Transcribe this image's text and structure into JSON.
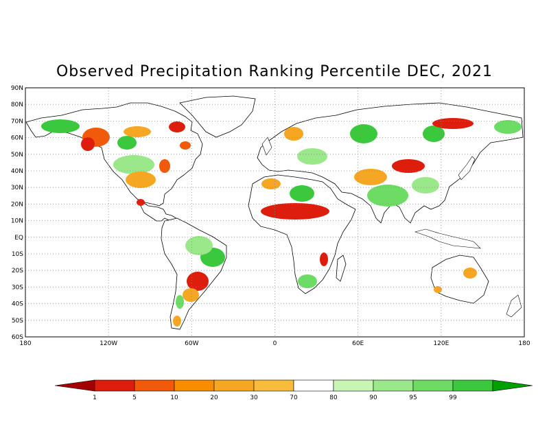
{
  "map": {
    "title": "Observed Precipitation Ranking Percentile DEC, 2021",
    "lat_labels": [
      "90N",
      "80N",
      "70N",
      "60N",
      "50N",
      "40N",
      "30N",
      "20N",
      "10N",
      "EQ",
      "10S",
      "20S",
      "30S",
      "40S",
      "50S",
      "60S"
    ],
    "lat_values": [
      90,
      80,
      70,
      60,
      50,
      40,
      30,
      20,
      10,
      0,
      -10,
      -20,
      -30,
      -40,
      -50,
      -60
    ],
    "lon_labels": [
      "180",
      "120W",
      "60W",
      "0",
      "60E",
      "120E",
      "180"
    ],
    "lon_values": [
      -180,
      -120,
      -60,
      0,
      60,
      120,
      180
    ],
    "lon_range": [
      -180,
      180
    ],
    "lat_range": [
      -60,
      90
    ],
    "grid": "dotted"
  },
  "legend": {
    "low_arrow_color": "#a50000",
    "high_arrow_color": "#00a000",
    "bins": [
      {
        "color": "#dd1e0c",
        "label": "1"
      },
      {
        "color": "#f05a0a",
        "label": "5"
      },
      {
        "color": "#fa8c00",
        "label": "10"
      },
      {
        "color": "#f5a623",
        "label": "20"
      },
      {
        "color": "#f8bb3c",
        "label": "30"
      },
      {
        "color": "#ffffff",
        "label": "70"
      },
      {
        "color": "#c8f5b4",
        "label": "80"
      },
      {
        "color": "#9ae88a",
        "label": "90"
      },
      {
        "color": "#6cdc64",
        "label": "95"
      },
      {
        "color": "#3cc83c",
        "label": "99"
      }
    ]
  }
}
